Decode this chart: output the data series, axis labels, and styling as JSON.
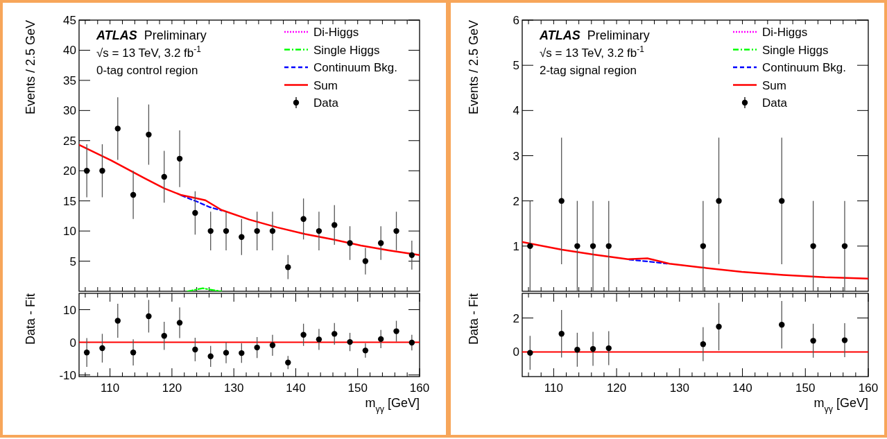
{
  "chart_data": [
    {
      "type": "scatter",
      "ylabel": "Events / 2.5 GeV",
      "xlim": [
        105,
        160
      ],
      "ylim": [
        0,
        45
      ],
      "tick_labels": "y",
      "legend": "top right",
      "xticks": [
        {
          "value": 106,
          "label": null
        },
        {
          "value": 108,
          "label": null
        },
        {
          "value": 110,
          "label": null
        },
        {
          "value": 112,
          "label": null
        },
        {
          "value": 114,
          "label": null
        },
        {
          "value": 116,
          "label": null
        },
        {
          "value": 118,
          "label": null
        },
        {
          "value": 120,
          "label": null
        },
        {
          "value": 122,
          "label": null
        },
        {
          "value": 124,
          "label": null
        },
        {
          "value": 126,
          "label": null
        },
        {
          "value": 128,
          "label": null
        },
        {
          "value": 130,
          "label": null
        },
        {
          "value": 132,
          "label": null
        },
        {
          "value": 134,
          "label": null
        },
        {
          "value": 136,
          "label": null
        },
        {
          "value": 138,
          "label": null
        },
        {
          "value": 140,
          "label": null
        },
        {
          "value": 142,
          "label": null
        },
        {
          "value": 144,
          "label": null
        },
        {
          "value": 146,
          "label": null
        },
        {
          "value": 148,
          "label": null
        },
        {
          "value": 150,
          "label": null
        },
        {
          "value": 152,
          "label": null
        },
        {
          "value": 154,
          "label": null
        },
        {
          "value": 156,
          "label": null
        },
        {
          "value": 158,
          "label": null
        }
      ],
      "yticks": [
        5,
        10,
        15,
        20,
        25,
        30,
        35,
        40,
        45
      ],
      "annotations": [
        "ATLAS",
        "Preliminary",
        "√s = 13 TeV, 3.2 fb$^{-1}$",
        "0-tag control region"
      ],
      "series": [
        {
          "name": "Di-Higgs",
          "type": "line",
          "line_style": "dotted",
          "color": "#ff00ff"
        },
        {
          "name": "Single Higgs",
          "type": "line",
          "line_style": "dashdot",
          "color": "#00ff00",
          "x": [
            122.5,
            124,
            125,
            126,
            128
          ],
          "values": [
            0,
            0.3,
            0.5,
            0.3,
            0
          ]
        },
        {
          "name": "Continuum Bkg.",
          "type": "line",
          "line_style": "dashed",
          "color": "#0000ff",
          "x": [
            121.5,
            124,
            126,
            128
          ],
          "values": [
            15.9,
            14.9,
            14.0,
            13.4
          ]
        },
        {
          "name": "Sum",
          "type": "line",
          "line_style": "solid",
          "color": "#ff0000",
          "x": [
            105,
            110.2,
            115.5,
            118.7,
            121.4,
            123.6,
            125.4,
            128,
            132.5,
            137,
            141.5,
            146,
            150.5,
            155,
            160
          ],
          "values": [
            24.3,
            21.7,
            18.8,
            17.1,
            16,
            15.5,
            15.1,
            13.5,
            11.9,
            10.6,
            9.5,
            8.6,
            7.6,
            6.8,
            6.0
          ]
        },
        {
          "name": "Data",
          "marker": "circle",
          "color": "#000000",
          "x": [
            106.25,
            108.75,
            111.25,
            113.75,
            116.25,
            118.75,
            121.25,
            123.75,
            126.25,
            128.75,
            131.25,
            133.75,
            136.25,
            138.75,
            141.25,
            143.75,
            146.25,
            148.75,
            151.25,
            153.75,
            156.25,
            158.75
          ],
          "values": [
            20,
            20,
            27,
            16,
            26,
            19,
            22,
            13,
            10,
            10,
            9,
            10,
            10,
            4,
            12,
            10,
            11,
            8,
            5,
            8,
            10,
            6
          ],
          "errors": [
            4.4,
            4.4,
            5.2,
            4,
            5,
            4.3,
            4.7,
            3.6,
            3.2,
            3.2,
            3,
            3.2,
            3.2,
            2,
            3.4,
            3.2,
            3.3,
            2.8,
            2.2,
            2.8,
            3.2,
            2.4
          ]
        }
      ]
    },
    {
      "type": "scatter",
      "ylabel": "Data - Fit",
      "xlabel": "m$_{γγ}$ [GeV]",
      "xlim": [
        105,
        160
      ],
      "ylim": [
        -10.5,
        15
      ],
      "marker": "circle",
      "xticks": [
        {
          "value": 106,
          "label": null
        },
        {
          "value": 108,
          "label": null
        },
        110,
        {
          "value": 112,
          "label": null
        },
        {
          "value": 114,
          "label": null
        },
        {
          "value": 116,
          "label": null
        },
        {
          "value": 118,
          "label": null
        },
        120,
        {
          "value": 122,
          "label": null
        },
        {
          "value": 124,
          "label": null
        },
        {
          "value": 126,
          "label": null
        },
        {
          "value": 128,
          "label": null
        },
        130,
        {
          "value": 132,
          "label": null
        },
        {
          "value": 134,
          "label": null
        },
        {
          "value": 136,
          "label": null
        },
        {
          "value": 138,
          "label": null
        },
        140,
        {
          "value": 142,
          "label": null
        },
        {
          "value": 144,
          "label": null
        },
        {
          "value": 146,
          "label": null
        },
        {
          "value": 148,
          "label": null
        },
        150,
        {
          "value": 152,
          "label": null
        },
        {
          "value": 154,
          "label": null
        },
        {
          "value": 156,
          "label": null
        },
        {
          "value": 158,
          "label": null
        },
        160
      ],
      "yticks": [
        -10,
        0,
        10
      ],
      "ref_lines": [
        {
          "axis": "y",
          "value": 0,
          "color": "#ff0000"
        }
      ],
      "series": [
        {
          "color": "#000000",
          "x": [
            106.25,
            108.75,
            111.25,
            113.75,
            116.25,
            118.75,
            121.25,
            123.75,
            126.25,
            128.75,
            131.25,
            133.75,
            136.25,
            138.75,
            141.25,
            143.75,
            146.25,
            148.75,
            151.25,
            153.75,
            156.25,
            158.75
          ],
          "values": [
            -3.1,
            -1.8,
            6.6,
            -3.1,
            8.0,
            2.0,
            6.0,
            -2.2,
            -4.3,
            -3.2,
            -3.3,
            -1.6,
            -0.9,
            -6.2,
            2.3,
            0.9,
            2.6,
            0.1,
            -2.5,
            1.0,
            3.4,
            -0.1
          ],
          "errors": [
            4.4,
            4.4,
            5.2,
            4,
            5,
            4.3,
            4.7,
            3.6,
            3.2,
            3.2,
            3,
            3.2,
            3.2,
            2,
            3.4,
            3.2,
            3.3,
            2.8,
            2.2,
            2.8,
            3.2,
            2.4
          ]
        }
      ]
    },
    {
      "type": "scatter",
      "ylabel": "Events / 2.5 GeV",
      "xlim": [
        105,
        160
      ],
      "ylim": [
        0,
        6
      ],
      "tick_labels": "y",
      "legend": "top right",
      "xticks": [
        {
          "value": 106,
          "label": null
        },
        {
          "value": 108,
          "label": null
        },
        {
          "value": 110,
          "label": null
        },
        {
          "value": 112,
          "label": null
        },
        {
          "value": 114,
          "label": null
        },
        {
          "value": 116,
          "label": null
        },
        {
          "value": 118,
          "label": null
        },
        {
          "value": 120,
          "label": null
        },
        {
          "value": 122,
          "label": null
        },
        {
          "value": 124,
          "label": null
        },
        {
          "value": 126,
          "label": null
        },
        {
          "value": 128,
          "label": null
        },
        {
          "value": 130,
          "label": null
        },
        {
          "value": 132,
          "label": null
        },
        {
          "value": 134,
          "label": null
        },
        {
          "value": 136,
          "label": null
        },
        {
          "value": 138,
          "label": null
        },
        {
          "value": 140,
          "label": null
        },
        {
          "value": 142,
          "label": null
        },
        {
          "value": 144,
          "label": null
        },
        {
          "value": 146,
          "label": null
        },
        {
          "value": 148,
          "label": null
        },
        {
          "value": 150,
          "label": null
        },
        {
          "value": 152,
          "label": null
        },
        {
          "value": 154,
          "label": null
        },
        {
          "value": 156,
          "label": null
        },
        {
          "value": 158,
          "label": null
        }
      ],
      "yticks": [
        1,
        2,
        3,
        4,
        5,
        6
      ],
      "annotations": [
        "ATLAS",
        "Preliminary",
        "√s = 13 TeV, 3.2 fb$^{-1}$",
        "2-tag signal region"
      ],
      "series": [
        {
          "name": "Di-Higgs",
          "type": "line",
          "line_style": "dotted",
          "color": "#ff00ff"
        },
        {
          "name": "Single Higgs",
          "type": "line",
          "line_style": "dashdot",
          "color": "#00ff00"
        },
        {
          "name": "Continuum Bkg.",
          "type": "line",
          "line_style": "dashed",
          "color": "#0000ff",
          "x": [
            122,
            125,
            128
          ],
          "values": [
            0.7,
            0.66,
            0.61
          ]
        },
        {
          "name": "Sum",
          "type": "line",
          "line_style": "solid",
          "color": "#ff0000",
          "x": [
            105,
            111.3,
            116.5,
            121.8,
            124.9,
            128.4,
            133.3,
            139.9,
            146.5,
            153.1,
            160
          ],
          "values": [
            1.09,
            0.92,
            0.81,
            0.71,
            0.73,
            0.61,
            0.53,
            0.43,
            0.36,
            0.31,
            0.28
          ]
        },
        {
          "name": "Data",
          "marker": "circle",
          "color": "#000000",
          "x": [
            106.25,
            111.25,
            113.75,
            116.25,
            118.75,
            133.75,
            136.25,
            146.25,
            151.25,
            156.25
          ],
          "values": [
            1,
            2,
            1,
            1,
            1,
            1,
            2,
            2,
            1,
            1
          ],
          "errors": [
            [
              0,
              2
            ],
            [
              0.6,
              3.4
            ],
            [
              0,
              2
            ],
            [
              0,
              2
            ],
            [
              0,
              2
            ],
            [
              0,
              2
            ],
            [
              0.6,
              3.4
            ],
            [
              0.6,
              3.4
            ],
            [
              0,
              2
            ],
            [
              0,
              2
            ]
          ]
        }
      ]
    },
    {
      "type": "scatter",
      "ylabel": "Data - Fit",
      "xlabel": "m$_{γγ}$ [GeV]",
      "xlim": [
        105,
        160
      ],
      "ylim": [
        -1.45,
        3.45
      ],
      "marker": "circle",
      "xticks": [
        {
          "value": 106,
          "label": null
        },
        {
          "value": 108,
          "label": null
        },
        110,
        {
          "value": 112,
          "label": null
        },
        {
          "value": 114,
          "label": null
        },
        {
          "value": 116,
          "label": null
        },
        {
          "value": 118,
          "label": null
        },
        120,
        {
          "value": 122,
          "label": null
        },
        {
          "value": 124,
          "label": null
        },
        {
          "value": 126,
          "label": null
        },
        {
          "value": 128,
          "label": null
        },
        130,
        {
          "value": 132,
          "label": null
        },
        {
          "value": 134,
          "label": null
        },
        {
          "value": 136,
          "label": null
        },
        {
          "value": 138,
          "label": null
        },
        140,
        {
          "value": 142,
          "label": null
        },
        {
          "value": 144,
          "label": null
        },
        {
          "value": 146,
          "label": null
        },
        {
          "value": 148,
          "label": null
        },
        150,
        {
          "value": 152,
          "label": null
        },
        {
          "value": 154,
          "label": null
        },
        {
          "value": 156,
          "label": null
        },
        {
          "value": 158,
          "label": null
        },
        160
      ],
      "yticks": [
        0,
        2
      ],
      "ref_lines": [
        {
          "axis": "y",
          "value": 0,
          "color": "#ff0000"
        }
      ],
      "series": [
        {
          "color": "#000000",
          "x": [
            106.25,
            111.25,
            113.75,
            116.25,
            118.75,
            133.75,
            136.25,
            146.25,
            151.25,
            156.25
          ],
          "values": [
            -0.05,
            1.07,
            0.13,
            0.18,
            0.22,
            0.46,
            1.49,
            1.6,
            0.66,
            0.69
          ],
          "errors": [
            1.0,
            1.4,
            1.0,
            1.0,
            1.0,
            1.0,
            1.4,
            1.4,
            1.0,
            1.0
          ]
        }
      ]
    }
  ]
}
